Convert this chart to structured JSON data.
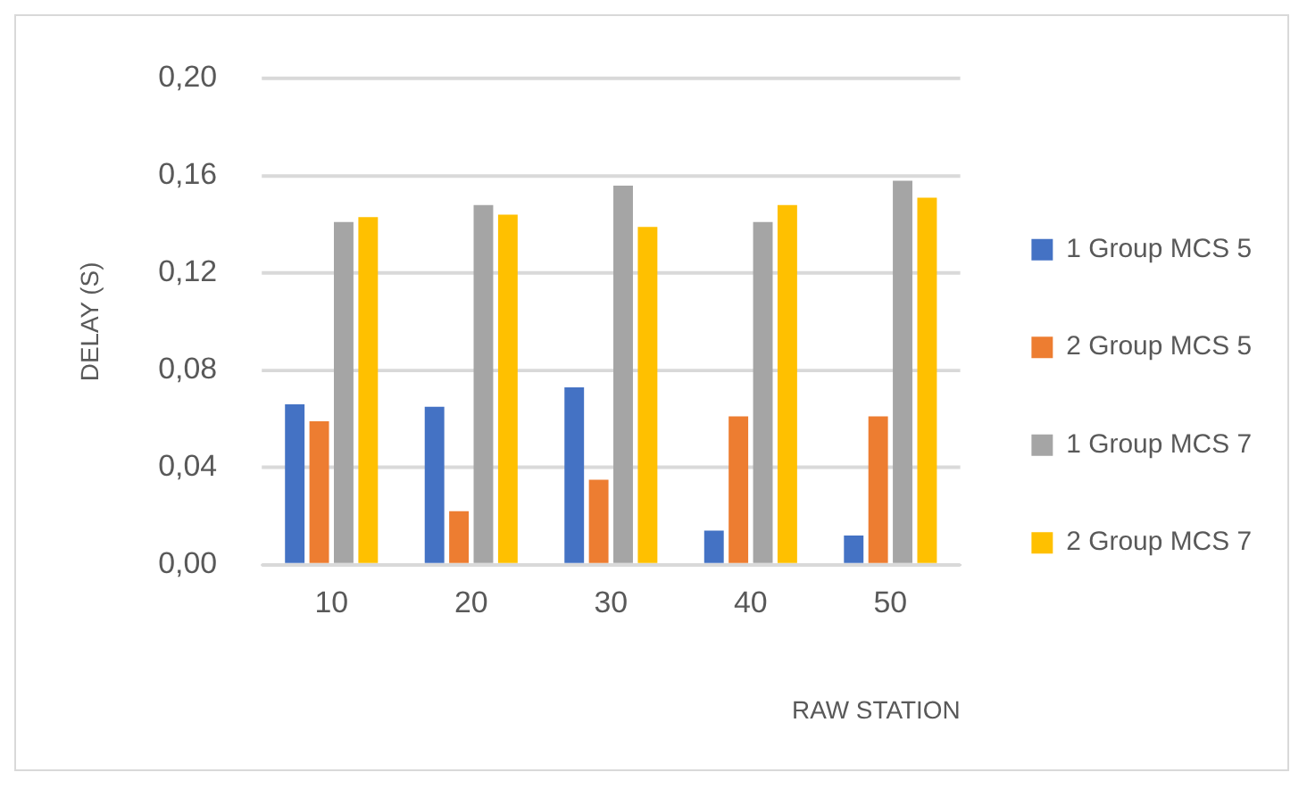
{
  "chart_data": {
    "type": "bar",
    "xlabel": "RAW STATION",
    "ylabel": "DELAY (S)",
    "categories": [
      "10",
      "20",
      "30",
      "40",
      "50"
    ],
    "series": [
      {
        "name": "1 Group MCS 5",
        "color": "#4472c4",
        "values": [
          0.066,
          0.065,
          0.073,
          0.014,
          0.012
        ]
      },
      {
        "name": "2 Group MCS 5",
        "color": "#ed7d31",
        "values": [
          0.059,
          0.022,
          0.035,
          0.061,
          0.061
        ]
      },
      {
        "name": "1 Group MCS 7",
        "color": "#a5a5a5",
        "values": [
          0.141,
          0.148,
          0.156,
          0.141,
          0.158
        ]
      },
      {
        "name": "2 Group MCS 7",
        "color": "#ffc000",
        "values": [
          0.143,
          0.144,
          0.139,
          0.148,
          0.151
        ]
      }
    ],
    "ylim": [
      0,
      0.2
    ],
    "yticks": [
      {
        "value": 0,
        "label": "0,00"
      },
      {
        "value": 0.04,
        "label": "0,04"
      },
      {
        "value": 0.08,
        "label": "0,08"
      },
      {
        "value": 0.12,
        "label": "0,12"
      },
      {
        "value": 0.16,
        "label": "0,16"
      },
      {
        "value": 0.2,
        "label": "0,20"
      }
    ],
    "grid": "y",
    "legend": "right"
  }
}
